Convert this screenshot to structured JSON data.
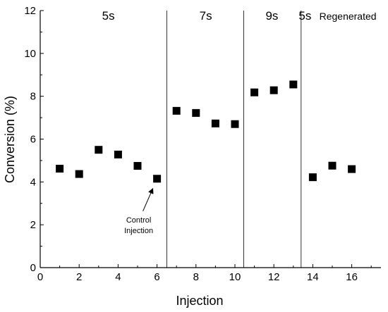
{
  "chart_data": {
    "type": "scatter",
    "title": "",
    "xlabel": "Injection",
    "ylabel": "Conversion (%)",
    "xlim": [
      0,
      17.5
    ],
    "ylim": [
      0,
      12
    ],
    "xticks": [
      0,
      2,
      4,
      6,
      8,
      10,
      12,
      14,
      16
    ],
    "yticks": [
      0,
      2,
      4,
      6,
      8,
      10,
      12
    ],
    "grid": false,
    "marker": "square",
    "series": [
      {
        "x": [
          1,
          2,
          3,
          4,
          5,
          6,
          7,
          8,
          9,
          10,
          11,
          12,
          13,
          14,
          15,
          16
        ],
        "y": [
          4.62,
          4.37,
          5.5,
          5.28,
          4.75,
          4.15,
          7.32,
          7.22,
          6.73,
          6.7,
          8.18,
          8.28,
          8.55,
          4.22,
          4.76,
          4.6
        ]
      }
    ],
    "dividers": [
      6.5,
      10.45,
      13.4
    ],
    "regions": [
      {
        "label": "5s",
        "x": 3.5
      },
      {
        "label": "7s",
        "x": 8.5
      },
      {
        "label": "9s",
        "x": 11.9
      },
      {
        "label": "5s",
        "x": 13.6
      },
      {
        "label": "Regenerated",
        "x": 15.8
      }
    ],
    "annotations": [
      {
        "lines": [
          "Control",
          "Injection"
        ],
        "target": [
          6,
          4.15
        ]
      }
    ]
  }
}
